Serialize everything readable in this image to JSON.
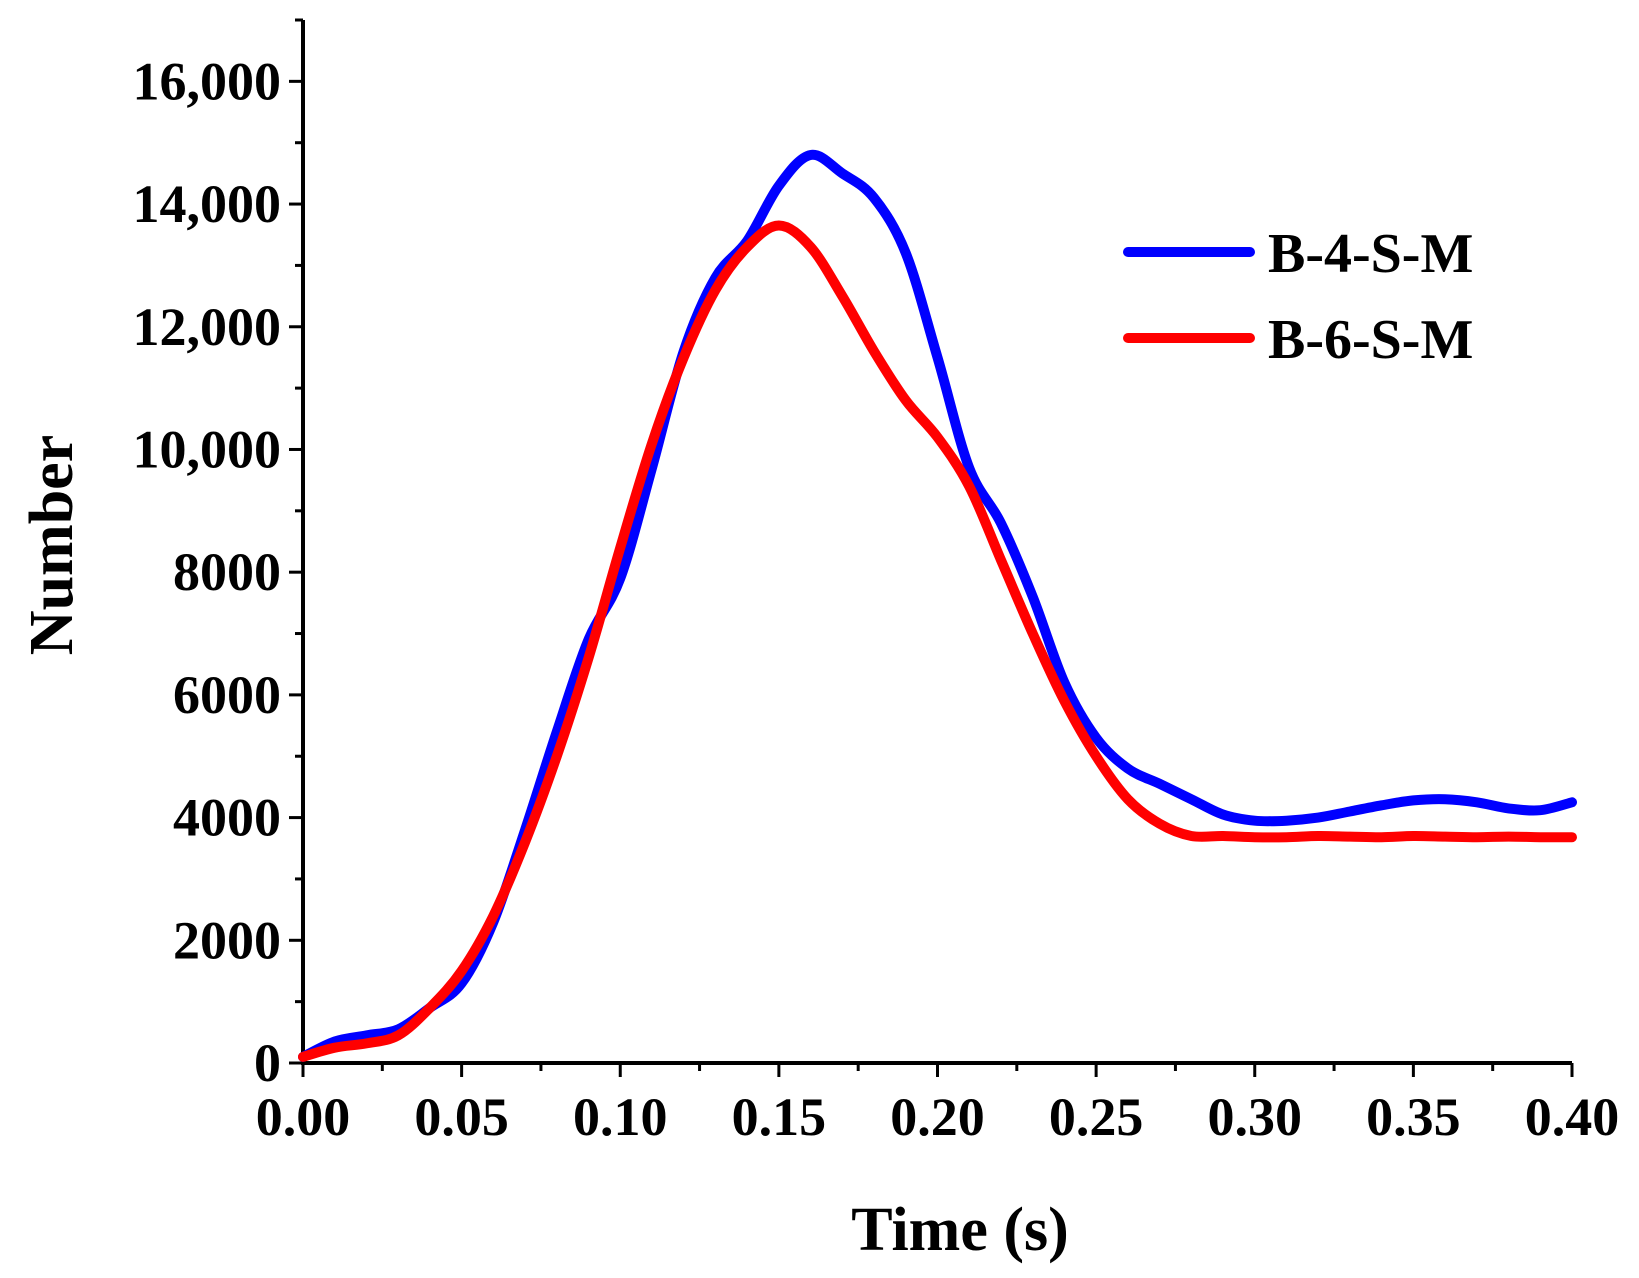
{
  "chart_data": {
    "type": "line",
    "title": "",
    "xlabel": "Time (s)",
    "ylabel": "Number",
    "xlim": [
      0,
      0.4
    ],
    "ylim": [
      0,
      17000
    ],
    "xticks": [
      0.0,
      0.05,
      0.1,
      0.15,
      0.2,
      0.25,
      0.3,
      0.35,
      0.4
    ],
    "xtick_labels": [
      "0.00",
      "0.05",
      "0.10",
      "0.15",
      "0.20",
      "0.25",
      "0.30",
      "0.35",
      "0.40"
    ],
    "yticks": [
      0,
      2000,
      4000,
      6000,
      8000,
      10000,
      12000,
      14000,
      16000
    ],
    "ytick_labels": [
      "0",
      "2000",
      "4000",
      "6000",
      "8000",
      "10,000",
      "12,000",
      "14,000",
      "16,000"
    ],
    "grid": false,
    "legend_position": "top-right",
    "series": [
      {
        "name": "B-4-S-M",
        "color": "#0000ff",
        "x": [
          0.0,
          0.01,
          0.02,
          0.03,
          0.04,
          0.05,
          0.06,
          0.07,
          0.08,
          0.09,
          0.1,
          0.11,
          0.12,
          0.13,
          0.14,
          0.15,
          0.16,
          0.17,
          0.18,
          0.19,
          0.2,
          0.21,
          0.22,
          0.23,
          0.24,
          0.25,
          0.26,
          0.27,
          0.28,
          0.29,
          0.3,
          0.31,
          0.32,
          0.33,
          0.34,
          0.35,
          0.36,
          0.37,
          0.38,
          0.39,
          0.4
        ],
        "y": [
          100,
          350,
          450,
          550,
          900,
          1300,
          2300,
          3800,
          5400,
          6900,
          7900,
          9700,
          11600,
          12800,
          13400,
          14300,
          14800,
          14500,
          14100,
          13200,
          11500,
          9700,
          8800,
          7600,
          6200,
          5300,
          4800,
          4550,
          4300,
          4050,
          3950,
          3950,
          4000,
          4100,
          4200,
          4280,
          4300,
          4250,
          4150,
          4120,
          4250
        ]
      },
      {
        "name": "B-6-S-M",
        "color": "#ff0000",
        "x": [
          0.0,
          0.01,
          0.02,
          0.03,
          0.04,
          0.05,
          0.06,
          0.07,
          0.08,
          0.09,
          0.1,
          0.11,
          0.12,
          0.13,
          0.14,
          0.15,
          0.16,
          0.17,
          0.18,
          0.19,
          0.2,
          0.21,
          0.22,
          0.23,
          0.24,
          0.25,
          0.26,
          0.27,
          0.28,
          0.29,
          0.3,
          0.31,
          0.32,
          0.33,
          0.34,
          0.35,
          0.36,
          0.37,
          0.38,
          0.39,
          0.4
        ],
        "y": [
          100,
          250,
          320,
          450,
          900,
          1500,
          2400,
          3600,
          5000,
          6600,
          8400,
          10100,
          11500,
          12600,
          13300,
          13650,
          13300,
          12500,
          11600,
          10800,
          10200,
          9400,
          8200,
          7000,
          5900,
          5000,
          4300,
          3900,
          3700,
          3700,
          3680,
          3680,
          3700,
          3690,
          3680,
          3700,
          3690,
          3680,
          3690,
          3680,
          3680
        ]
      }
    ]
  }
}
